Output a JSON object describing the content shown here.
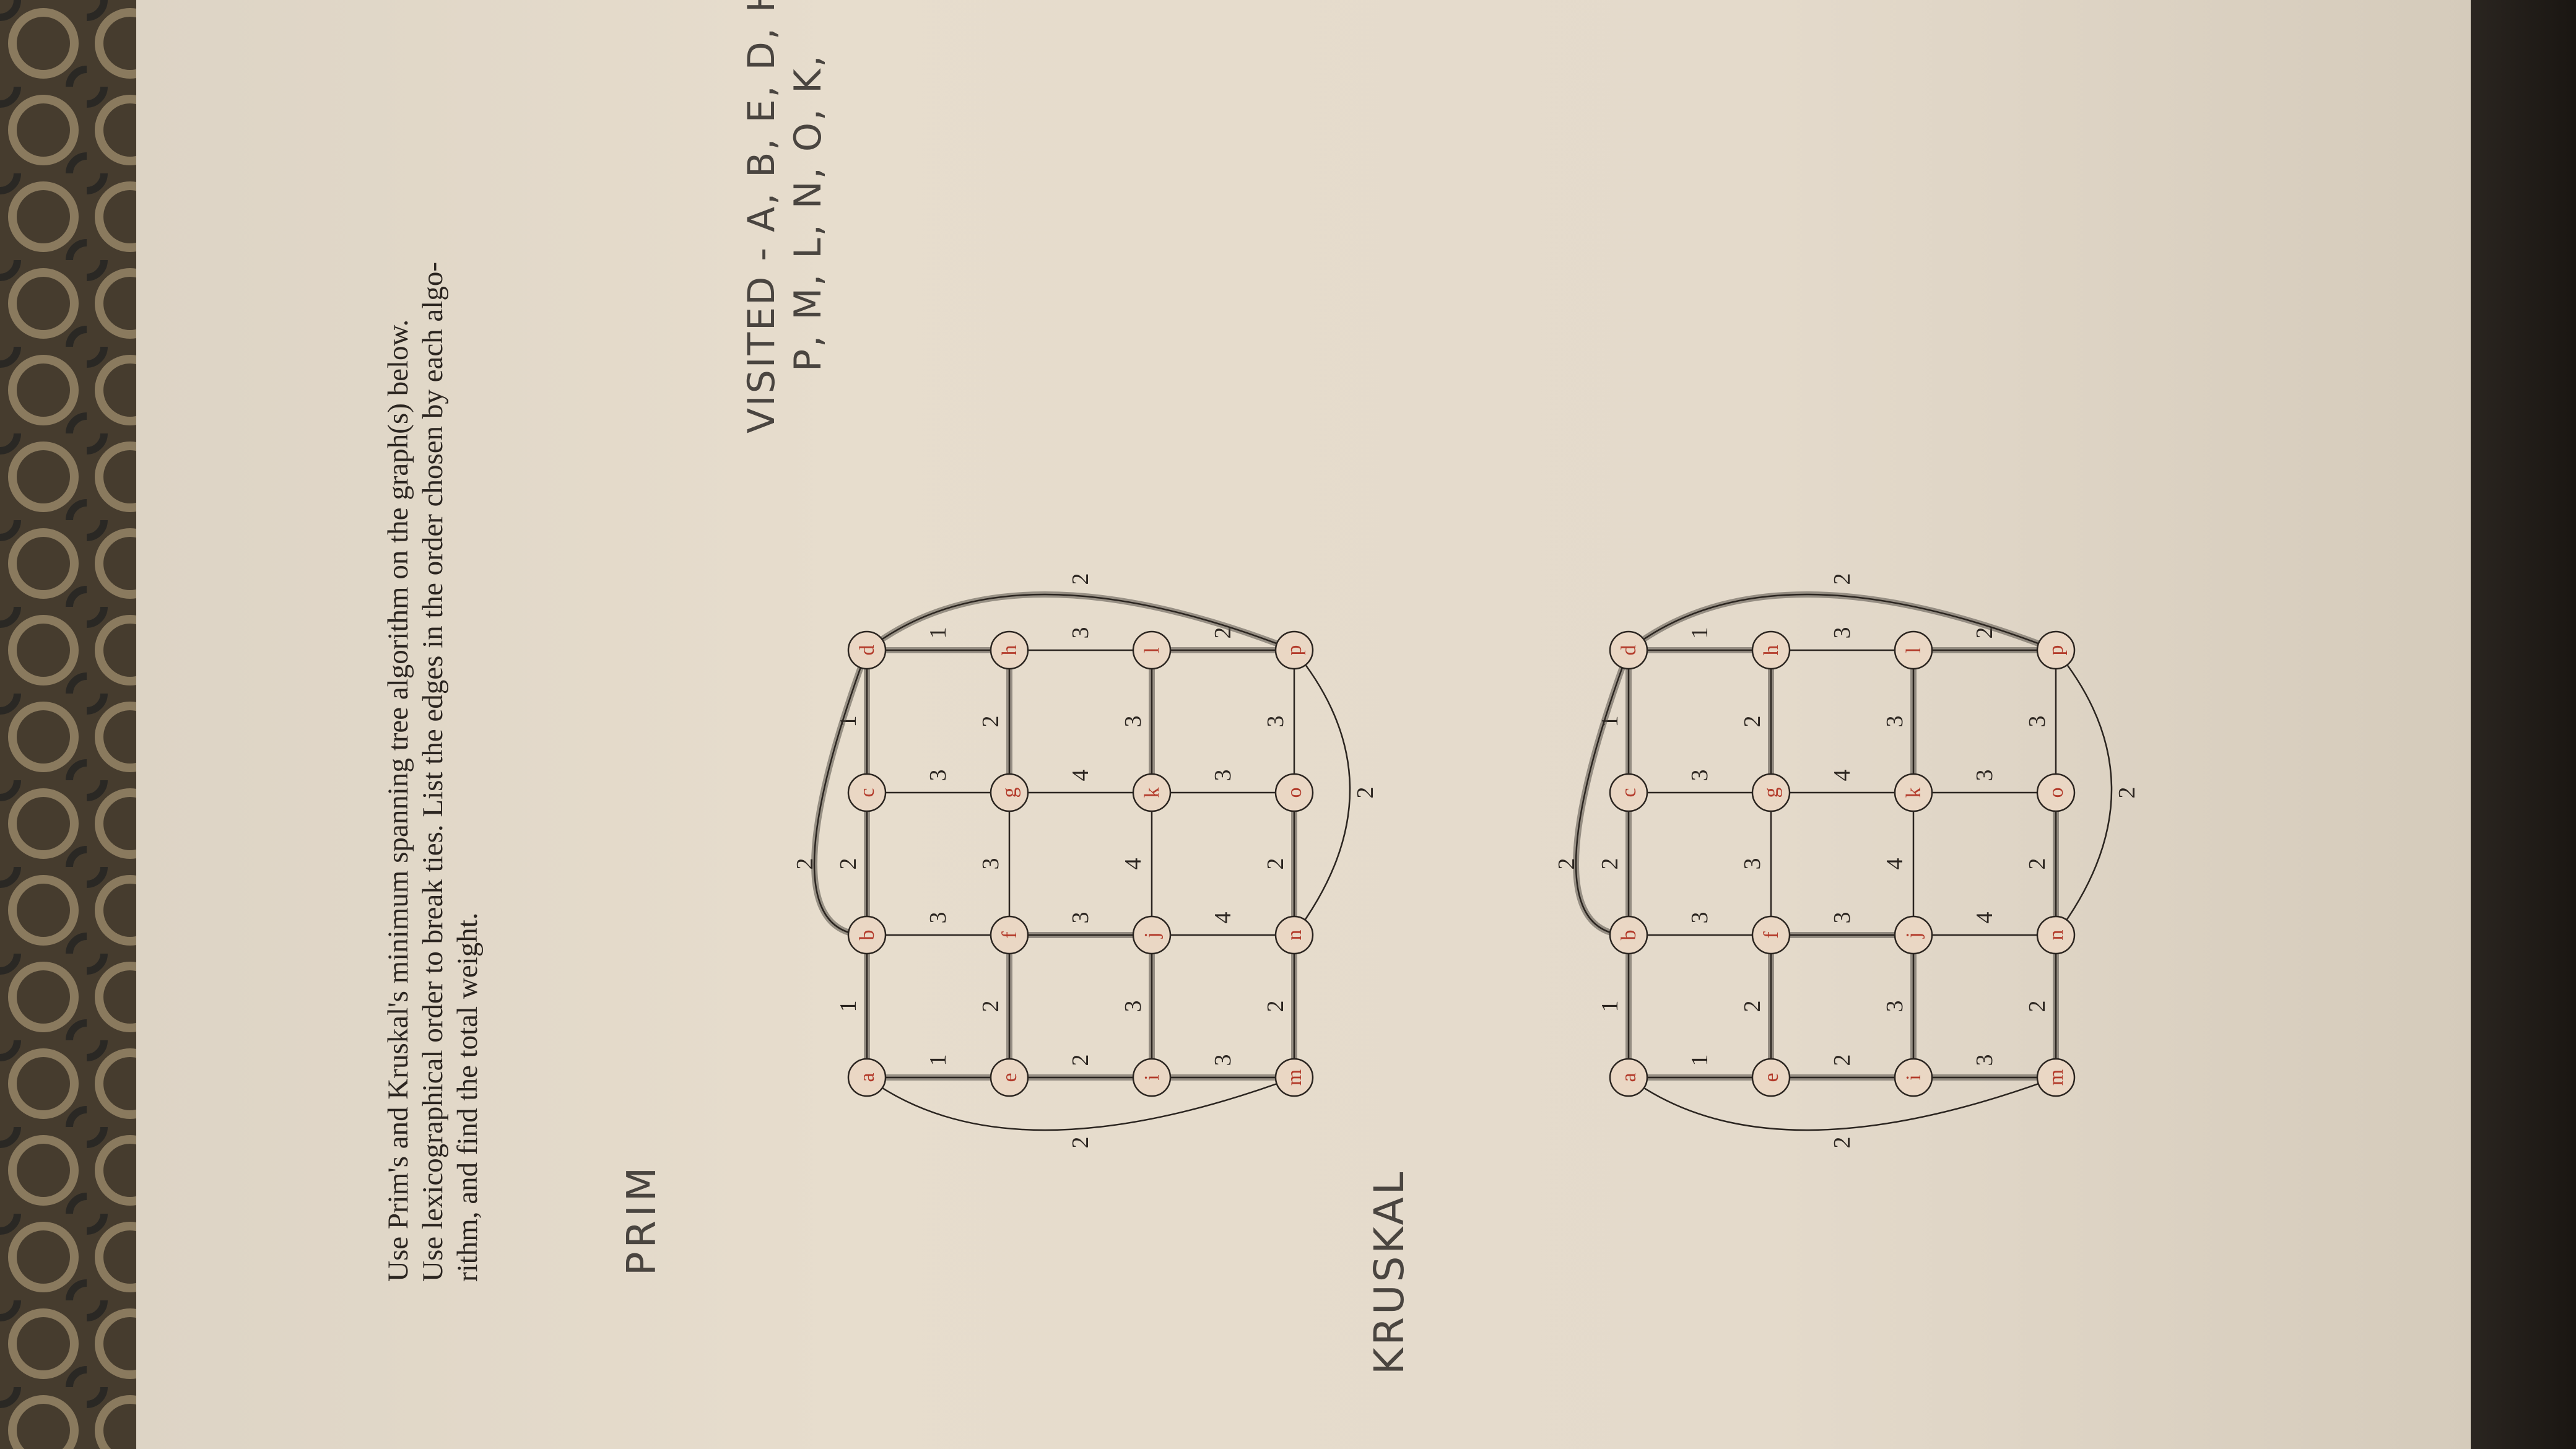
{
  "instructions": {
    "line1": "Use Prim's and Kruskal's minimum spanning tree algorithm on the graph(s) below.",
    "line2": "Use lexicographical order to break ties.  List the edges in the order chosen by each algo-",
    "line3": "rithm, and find the total weight."
  },
  "handwriting": {
    "prim_label": "PRIM",
    "kruskal_label": "KRUSKAL",
    "visited_line1": "VISITED - A, B, E, D, H, C, F, I,",
    "visited_line2": "P, M, L, N, O, K,"
  },
  "graph": {
    "nodes": [
      "a",
      "b",
      "c",
      "d",
      "e",
      "f",
      "g",
      "h",
      "i",
      "j",
      "k",
      "l",
      "m",
      "n",
      "o",
      "p"
    ],
    "weights": {
      "ab": "1",
      "bc": "2",
      "cd": "1",
      "outer_top": "2",
      "ae": "1",
      "bf": "3",
      "cg": "3",
      "dh": "1",
      "ef": "2",
      "fg": "3",
      "gh": "2",
      "ei": "2",
      "fj": "3",
      "gk": "4",
      "hl": "3",
      "ij": "3",
      "jk": "4",
      "kl": "3",
      "im": "3",
      "jn": "4",
      "ko": "3",
      "lp": "2",
      "mn": "2",
      "no": "2",
      "op": "3",
      "outer_left": "2",
      "outer_right": "2",
      "outer_bottom": "2"
    }
  },
  "colors": {
    "paper": "#e4dacb",
    "ink": "#2b2520",
    "node_label": "#b33a2a",
    "pencil": "#4a4540",
    "fabric": "#3d3528"
  }
}
